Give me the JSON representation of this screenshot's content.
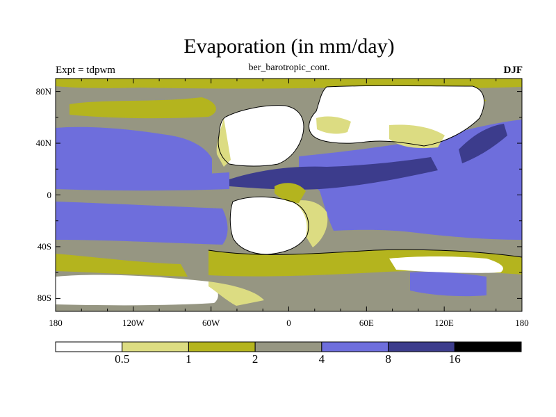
{
  "title": "Evaporation (in mm/day)",
  "subtitle": "ber_barotropic_cont.",
  "left_label": "Expt = tdpwm",
  "right_label": "DJF",
  "map": {
    "lon_ticks": [
      "180",
      "120W",
      "60W",
      "0",
      "60E",
      "120E",
      "180"
    ],
    "lat_ticks": [
      "80N",
      "40N",
      "0",
      "40S",
      "80S"
    ],
    "lon_range": [
      -180,
      180
    ],
    "lat_range": [
      -90,
      90
    ]
  },
  "colorbar": {
    "labels": [
      "0.5",
      "1",
      "2",
      "4",
      "8",
      "16"
    ],
    "colors": [
      "#ffffff",
      "#dcdc82",
      "#b4b41e",
      "#969682",
      "#6e6edc",
      "#3c3c8c",
      "#000000"
    ]
  },
  "colors": {
    "white": "#ffffff",
    "light_yellow": "#dcdc82",
    "olive": "#b4b41e",
    "gray": "#969682",
    "blue": "#6e6edc",
    "dark_blue": "#3c3c8c"
  }
}
